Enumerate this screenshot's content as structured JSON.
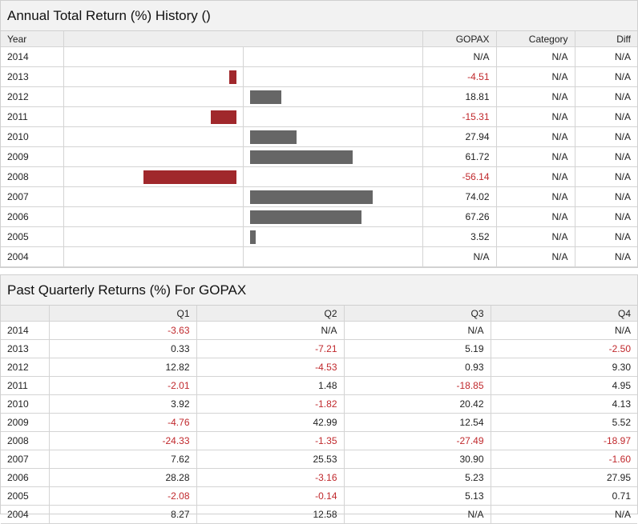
{
  "annual": {
    "title": "Annual Total Return (%) History ()",
    "headers": {
      "year": "Year",
      "fund": "GOPAX",
      "category": "Category",
      "diff": "Diff"
    },
    "colors": {
      "positive_bar": "#666666",
      "negative_bar": "#a0282c",
      "negative_text": "#c0282c"
    },
    "rows": [
      {
        "year": "2014",
        "fund": "N/A",
        "category": "N/A",
        "diff": "N/A"
      },
      {
        "year": "2013",
        "fund": "-4.51",
        "category": "N/A",
        "diff": "N/A"
      },
      {
        "year": "2012",
        "fund": "18.81",
        "category": "N/A",
        "diff": "N/A"
      },
      {
        "year": "2011",
        "fund": "-15.31",
        "category": "N/A",
        "diff": "N/A"
      },
      {
        "year": "2010",
        "fund": "27.94",
        "category": "N/A",
        "diff": "N/A"
      },
      {
        "year": "2009",
        "fund": "61.72",
        "category": "N/A",
        "diff": "N/A"
      },
      {
        "year": "2008",
        "fund": "-56.14",
        "category": "N/A",
        "diff": "N/A"
      },
      {
        "year": "2007",
        "fund": "74.02",
        "category": "N/A",
        "diff": "N/A"
      },
      {
        "year": "2006",
        "fund": "67.26",
        "category": "N/A",
        "diff": "N/A"
      },
      {
        "year": "2005",
        "fund": "3.52",
        "category": "N/A",
        "diff": "N/A"
      },
      {
        "year": "2004",
        "fund": "N/A",
        "category": "N/A",
        "diff": "N/A"
      }
    ]
  },
  "quarterly": {
    "title": "Past Quarterly Returns (%) For GOPAX",
    "headers": {
      "year": "",
      "q1": "Q1",
      "q2": "Q2",
      "q3": "Q3",
      "q4": "Q4"
    },
    "rows": [
      {
        "year": "2014",
        "q1": "-3.63",
        "q2": "N/A",
        "q3": "N/A",
        "q4": "N/A"
      },
      {
        "year": "2013",
        "q1": "0.33",
        "q2": "-7.21",
        "q3": "5.19",
        "q4": "-2.50"
      },
      {
        "year": "2012",
        "q1": "12.82",
        "q2": "-4.53",
        "q3": "0.93",
        "q4": "9.30"
      },
      {
        "year": "2011",
        "q1": "-2.01",
        "q2": "1.48",
        "q3": "-18.85",
        "q4": "4.95"
      },
      {
        "year": "2010",
        "q1": "3.92",
        "q2": "-1.82",
        "q3": "20.42",
        "q4": "4.13"
      },
      {
        "year": "2009",
        "q1": "-4.76",
        "q2": "42.99",
        "q3": "12.54",
        "q4": "5.52"
      },
      {
        "year": "2008",
        "q1": "-24.33",
        "q2": "-1.35",
        "q3": "-27.49",
        "q4": "-18.97"
      },
      {
        "year": "2007",
        "q1": "7.62",
        "q2": "25.53",
        "q3": "30.90",
        "q4": "-1.60"
      },
      {
        "year": "2006",
        "q1": "28.28",
        "q2": "-3.16",
        "q3": "5.23",
        "q4": "27.95"
      },
      {
        "year": "2005",
        "q1": "-2.08",
        "q2": "-0.14",
        "q3": "5.13",
        "q4": "0.71"
      },
      {
        "year": "2004",
        "q1": "8.27",
        "q2": "12.58",
        "q3": "N/A",
        "q4": "N/A"
      }
    ]
  },
  "chart_data": {
    "type": "bar",
    "categories": [
      "2014",
      "2013",
      "2012",
      "2011",
      "2010",
      "2009",
      "2008",
      "2007",
      "2006",
      "2005",
      "2004"
    ],
    "series": [
      {
        "name": "GOPAX",
        "values": [
          null,
          -4.51,
          18.81,
          -15.31,
          27.94,
          61.72,
          -56.14,
          74.02,
          67.26,
          3.52,
          null
        ]
      }
    ],
    "orientation": "horizontal",
    "title": "Annual Total Return (%) History ()"
  }
}
